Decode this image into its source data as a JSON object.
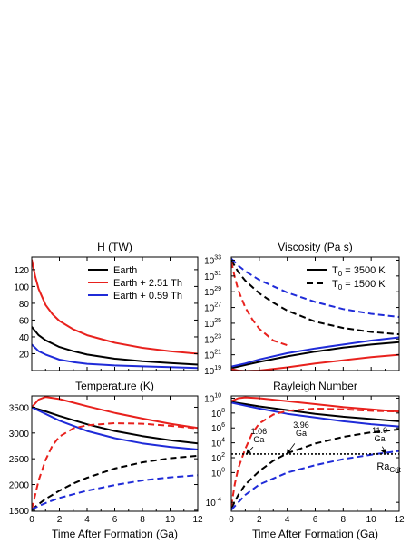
{
  "figure": {
    "xlabel": "Time After Formation (Ga)"
  },
  "chart_data": [
    {
      "type": "line",
      "id": "heat",
      "title": "H (TW)",
      "xlim": [
        0,
        12
      ],
      "ylim": [
        0,
        135
      ],
      "xticks": [
        0,
        2,
        4,
        6,
        8,
        10,
        12
      ],
      "yticks": [
        20,
        40,
        60,
        80,
        100,
        120
      ],
      "legend": "top-right",
      "series": [
        {
          "name": "Earth",
          "color": "#000000",
          "dash": false,
          "x": [
            0,
            0.5,
            1,
            2,
            3,
            4,
            6,
            8,
            10,
            12
          ],
          "y": [
            52,
            42,
            36,
            28,
            23,
            19,
            14,
            11,
            9,
            7
          ]
        },
        {
          "name": "Earth + 2.51 Th",
          "color": "#e8211d",
          "dash": false,
          "x": [
            0,
            0.25,
            0.5,
            1,
            1.5,
            2,
            3,
            4,
            6,
            8,
            10,
            12
          ],
          "y": [
            132,
            112,
            97,
            78,
            67,
            59,
            49,
            42,
            33,
            27,
            23,
            20
          ]
        },
        {
          "name": "Earth + 0.59 Th",
          "color": "#1f2bd8",
          "dash": false,
          "x": [
            0,
            0.5,
            1,
            2,
            3,
            4,
            6,
            8,
            10,
            12
          ],
          "y": [
            31,
            23,
            19,
            13,
            10,
            8,
            6,
            5,
            4,
            3
          ]
        }
      ]
    },
    {
      "type": "line",
      "id": "viscosity",
      "title": "Viscosity (Pa s)",
      "yscale": "log",
      "xlim": [
        0,
        12
      ],
      "ylim": [
        19,
        33.4
      ],
      "xticks": [
        0,
        2,
        4,
        6,
        8,
        10,
        12
      ],
      "yticks": [
        19,
        21,
        23,
        25,
        27,
        29,
        31,
        33
      ],
      "legend": "top-right",
      "legend_entries": [
        {
          "label": "T",
          "sub": "0",
          "rest": " = 3500 K",
          "dash": false
        },
        {
          "label": "T",
          "sub": "0",
          "rest": " = 1500 K",
          "dash": true
        }
      ],
      "series": [
        {
          "color": "#000000",
          "dash": false,
          "x": [
            0,
            1,
            2,
            4,
            6,
            8,
            10,
            12
          ],
          "y": [
            19.3,
            19.7,
            20.1,
            20.8,
            21.4,
            21.9,
            22.3,
            22.6
          ]
        },
        {
          "color": "#e8211d",
          "dash": false,
          "x": [
            0,
            0.5,
            1,
            2,
            3,
            4,
            6,
            8,
            10,
            12
          ],
          "y": [
            19.2,
            19.0,
            18.95,
            19.0,
            19.2,
            19.4,
            19.9,
            20.3,
            20.7,
            21.0
          ]
        },
        {
          "color": "#1f2bd8",
          "dash": false,
          "x": [
            0,
            1,
            2,
            4,
            6,
            8,
            10,
            12
          ],
          "y": [
            19.5,
            19.9,
            20.4,
            21.2,
            21.8,
            22.3,
            22.8,
            23.2
          ]
        },
        {
          "color": "#000000",
          "dash": true,
          "x": [
            0,
            0.5,
            1,
            2,
            3,
            4,
            6,
            8,
            10,
            12
          ],
          "y": [
            33.0,
            31.5,
            30.4,
            28.8,
            27.6,
            26.6,
            25.2,
            24.4,
            23.9,
            23.6
          ]
        },
        {
          "color": "#e8211d",
          "dash": true,
          "x": [
            0,
            0.25,
            0.5,
            1,
            1.5,
            2,
            3,
            4
          ],
          "y": [
            32.8,
            30.8,
            29.2,
            27.0,
            25.5,
            24.3,
            22.8,
            22.2
          ]
        },
        {
          "color": "#1f2bd8",
          "dash": true,
          "x": [
            0,
            0.5,
            1,
            2,
            4,
            6,
            8,
            10,
            12
          ],
          "y": [
            33.2,
            32.3,
            31.6,
            30.5,
            28.9,
            27.7,
            26.8,
            26.2,
            25.8
          ]
        }
      ]
    },
    {
      "type": "line",
      "id": "temperature",
      "title": "Temperature (K)",
      "xlim": [
        0,
        12
      ],
      "ylim": [
        1480,
        3720
      ],
      "xticks": [
        0,
        2,
        4,
        6,
        8,
        10,
        12
      ],
      "yticks": [
        1500,
        2000,
        2500,
        3000,
        3500
      ],
      "series": [
        {
          "color": "#000000",
          "dash": false,
          "x": [
            0,
            1,
            2,
            4,
            6,
            8,
            10,
            12
          ],
          "y": [
            3500,
            3420,
            3330,
            3170,
            3040,
            2940,
            2860,
            2800
          ]
        },
        {
          "color": "#e8211d",
          "dash": false,
          "x": [
            0,
            0.5,
            1,
            2,
            3,
            4,
            6,
            8,
            10,
            12
          ],
          "y": [
            3500,
            3650,
            3700,
            3660,
            3590,
            3520,
            3390,
            3280,
            3180,
            3100
          ]
        },
        {
          "color": "#1f2bd8",
          "dash": false,
          "x": [
            0,
            1,
            2,
            4,
            6,
            8,
            10,
            12
          ],
          "y": [
            3500,
            3370,
            3240,
            3040,
            2900,
            2800,
            2730,
            2680
          ]
        },
        {
          "color": "#000000",
          "dash": true,
          "x": [
            0,
            0.5,
            1,
            2,
            3,
            4,
            6,
            8,
            10,
            12
          ],
          "y": [
            1510,
            1620,
            1720,
            1880,
            2020,
            2130,
            2310,
            2430,
            2510,
            2560
          ]
        },
        {
          "color": "#e8211d",
          "dash": true,
          "x": [
            0,
            0.25,
            0.5,
            1,
            1.5,
            2,
            3,
            4,
            6,
            8,
            10,
            12
          ],
          "y": [
            1520,
            1800,
            2080,
            2480,
            2760,
            2930,
            3090,
            3150,
            3190,
            3180,
            3140,
            3090
          ]
        },
        {
          "color": "#1f2bd8",
          "dash": true,
          "x": [
            0,
            1,
            2,
            4,
            6,
            8,
            10,
            12
          ],
          "y": [
            1520,
            1640,
            1740,
            1880,
            1990,
            2080,
            2140,
            2180
          ]
        }
      ]
    },
    {
      "type": "line",
      "id": "rayleigh",
      "title": "Rayleigh Number",
      "yscale": "log",
      "xlim": [
        0,
        12
      ],
      "ylim": [
        -5.2,
        10.3
      ],
      "xticks": [
        0,
        2,
        4,
        6,
        8,
        10,
        12
      ],
      "yticks": [
        -4,
        0,
        2,
        4,
        6,
        8,
        10
      ],
      "critical_line": {
        "y": 2.5,
        "label": "Ra",
        "sub": "Crit"
      },
      "annotations": [
        {
          "value": "1.06",
          "unit": "Ga",
          "x": 1.06
        },
        {
          "value": "3.96",
          "unit": "Ga",
          "x": 3.96
        },
        {
          "value": "11.0",
          "unit": "Ga",
          "x": 11.0
        }
      ],
      "series": [
        {
          "color": "#000000",
          "dash": false,
          "x": [
            0,
            1,
            2,
            4,
            6,
            8,
            10,
            12
          ],
          "y": [
            9.5,
            9.2,
            8.9,
            8.4,
            7.9,
            7.5,
            7.2,
            6.9
          ]
        },
        {
          "color": "#e8211d",
          "dash": false,
          "x": [
            0,
            0.5,
            1,
            2,
            3,
            4,
            6,
            8,
            10,
            12
          ],
          "y": [
            9.6,
            10.0,
            10.1,
            10.0,
            9.8,
            9.6,
            9.2,
            8.8,
            8.5,
            8.2
          ]
        },
        {
          "color": "#1f2bd8",
          "dash": false,
          "x": [
            0,
            1,
            2,
            4,
            6,
            8,
            10,
            12
          ],
          "y": [
            9.4,
            9.0,
            8.6,
            7.9,
            7.4,
            6.9,
            6.5,
            6.2
          ]
        },
        {
          "color": "#000000",
          "dash": true,
          "x": [
            0,
            0.5,
            1,
            2,
            3,
            4,
            6,
            8,
            10,
            12
          ],
          "y": [
            -4.8,
            -3.0,
            -1.6,
            0.2,
            1.6,
            2.6,
            3.9,
            4.8,
            5.4,
            5.8
          ]
        },
        {
          "color": "#e8211d",
          "dash": true,
          "x": [
            0,
            0.25,
            0.5,
            1,
            1.5,
            2,
            3,
            4,
            6,
            8,
            10,
            12
          ],
          "y": [
            -4.5,
            -1.5,
            0.6,
            3.2,
            5.3,
            6.6,
            7.8,
            8.3,
            8.6,
            8.5,
            8.3,
            8.2
          ]
        },
        {
          "color": "#1f2bd8",
          "dash": true,
          "x": [
            0,
            1,
            2,
            4,
            6,
            8,
            10,
            12
          ],
          "y": [
            -5.0,
            -3.0,
            -1.6,
            0.0,
            1.0,
            1.8,
            2.4,
            2.9
          ]
        }
      ]
    }
  ]
}
